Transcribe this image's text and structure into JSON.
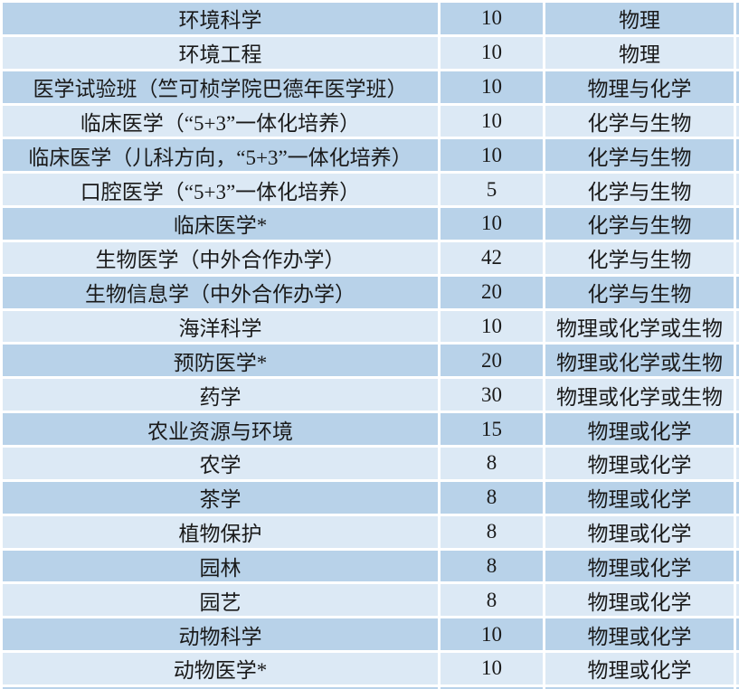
{
  "table": {
    "rows": [
      {
        "major": "环境科学",
        "quota": "10",
        "subjects": "物理"
      },
      {
        "major": "环境工程",
        "quota": "10",
        "subjects": "物理"
      },
      {
        "major": "医学试验班（竺可桢学院巴德年医学班）",
        "quota": "10",
        "subjects": "物理与化学"
      },
      {
        "major": "临床医学（“5+3”一体化培养）",
        "quota": "10",
        "subjects": "化学与生物"
      },
      {
        "major": "临床医学（儿科方向，“5+3”一体化培养）",
        "quota": "10",
        "subjects": "化学与生物"
      },
      {
        "major": "口腔医学（“5+3”一体化培养）",
        "quota": "5",
        "subjects": "化学与生物"
      },
      {
        "major": "临床医学*",
        "quota": "10",
        "subjects": "化学与生物"
      },
      {
        "major": "生物医学（中外合作办学）",
        "quota": "42",
        "subjects": "化学与生物"
      },
      {
        "major": "生物信息学（中外合作办学）",
        "quota": "20",
        "subjects": "化学与生物"
      },
      {
        "major": "海洋科学",
        "quota": "10",
        "subjects": "物理或化学或生物"
      },
      {
        "major": "预防医学*",
        "quota": "20",
        "subjects": "物理或化学或生物"
      },
      {
        "major": "药学",
        "quota": "30",
        "subjects": "物理或化学或生物"
      },
      {
        "major": "农业资源与环境",
        "quota": "15",
        "subjects": "物理或化学"
      },
      {
        "major": "农学",
        "quota": "8",
        "subjects": "物理或化学"
      },
      {
        "major": "茶学",
        "quota": "8",
        "subjects": "物理或化学"
      },
      {
        "major": "植物保护",
        "quota": "8",
        "subjects": "物理或化学"
      },
      {
        "major": "园林",
        "quota": "8",
        "subjects": "物理或化学"
      },
      {
        "major": "园艺",
        "quota": "8",
        "subjects": "物理或化学"
      },
      {
        "major": "动物科学",
        "quota": "10",
        "subjects": "物理或化学"
      },
      {
        "major": "动物医学*",
        "quota": "10",
        "subjects": "物理或化学"
      }
    ]
  },
  "colors": {
    "row_dark": "#b8d2e9",
    "row_light": "#dce9f5",
    "separator": "#ffffff",
    "text": "#1a1a1a"
  }
}
